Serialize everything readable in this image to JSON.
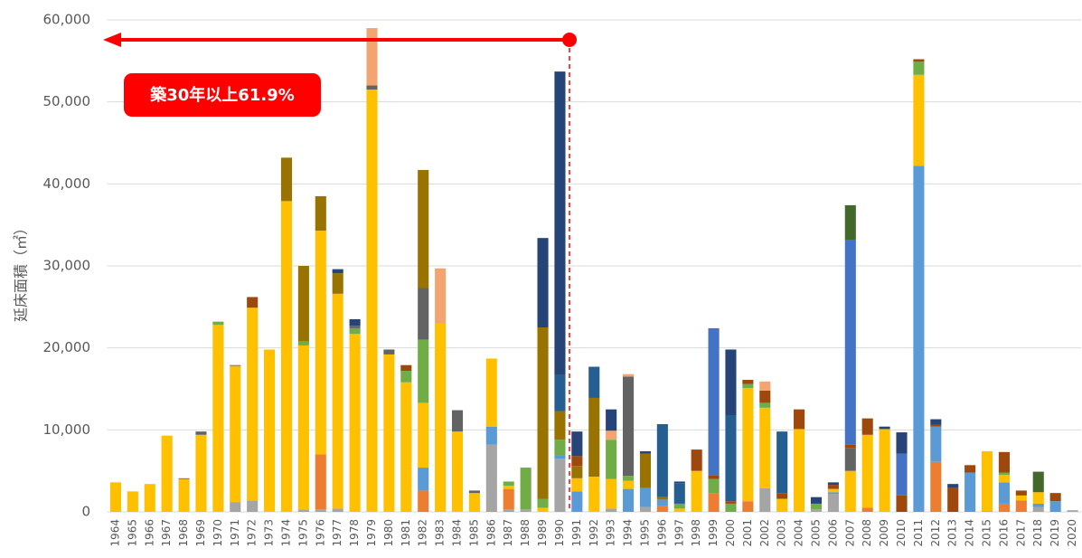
{
  "chart_data": {
    "type": "stacked_bar",
    "y_label": "延床面積（㎡）",
    "callout": "築30年以上61.9%",
    "categories": [
      "1964",
      "1965",
      "1966",
      "1967",
      "1968",
      "1969",
      "1970",
      "1971",
      "1972",
      "1973",
      "1974",
      "1975",
      "1976",
      "1977",
      "1978",
      "1979",
      "1980",
      "1981",
      "1982",
      "1983",
      "1984",
      "1985",
      "1986",
      "1987",
      "1988",
      "1989",
      "1990",
      "1991",
      "1992",
      "1993",
      "1994",
      "1995",
      "1996",
      "1997",
      "1998",
      "1999",
      "2000",
      "2001",
      "2002",
      "2003",
      "2004",
      "2005",
      "2006",
      "2007",
      "2008",
      "2009",
      "2010",
      "2011",
      "2012",
      "2013",
      "2014",
      "2015",
      "2016",
      "2017",
      "2018",
      "2019",
      "2020"
    ],
    "ylim": [
      0,
      60000
    ],
    "yticks": [
      0,
      {
        "value": 10000,
        "label": "10,000"
      },
      {
        "value": 20000,
        "label": "20,000"
      },
      {
        "value": 30000,
        "label": "30,000"
      },
      {
        "value": 40000,
        "label": "40,000"
      },
      {
        "value": 50000,
        "label": "50,000"
      },
      {
        "value": 60000,
        "label": "60,000"
      }
    ],
    "grid": true,
    "series": [
      {
        "color": "#a5a5a5",
        "values": [
          0,
          0,
          0,
          0,
          0,
          0,
          0,
          1200,
          1400,
          0,
          0,
          300,
          300,
          400,
          0,
          0,
          0,
          0,
          0,
          0,
          0,
          0,
          8200,
          300,
          300,
          0,
          6500,
          0,
          0,
          400,
          0,
          600,
          0,
          0,
          0,
          0,
          0,
          0,
          2900,
          0,
          0,
          300,
          2200,
          0,
          0,
          0,
          0,
          0,
          0,
          0,
          0,
          100,
          0,
          0,
          600,
          0,
          200
        ]
      },
      {
        "color": "#ed7d31",
        "values": [
          0,
          0,
          0,
          0,
          0,
          0,
          0,
          0,
          0,
          0,
          0,
          0,
          6700,
          0,
          0,
          0,
          0,
          0,
          2600,
          0,
          0,
          0,
          0,
          2500,
          0,
          0,
          0,
          0,
          0,
          0,
          0,
          0,
          700,
          0,
          0,
          2300,
          0,
          1300,
          0,
          0,
          0,
          0,
          0,
          0,
          500,
          0,
          0,
          0,
          6100,
          0,
          0,
          0,
          1000,
          1400,
          0,
          0,
          0
        ]
      },
      {
        "color": "#5b9bd5",
        "values": [
          0,
          0,
          0,
          0,
          0,
          0,
          0,
          0,
          0,
          0,
          0,
          0,
          0,
          0,
          0,
          0,
          0,
          0,
          2800,
          0,
          0,
          0,
          2200,
          0,
          0,
          0,
          400,
          2500,
          0,
          0,
          2800,
          2300,
          800,
          0,
          0,
          0,
          0,
          0,
          0,
          0,
          0,
          0,
          200,
          0,
          0,
          0,
          0,
          42200,
          4300,
          0,
          4800,
          0,
          2600,
          0,
          400,
          1300,
          0
        ]
      },
      {
        "color": "#ffc000",
        "values": [
          3600,
          2500,
          3400,
          9300,
          4000,
          9400,
          22800,
          16600,
          23500,
          19800,
          37900,
          20000,
          27300,
          26200,
          21700,
          51500,
          19200,
          15800,
          7900,
          23000,
          9800,
          2300,
          8300,
          400,
          0,
          500,
          0,
          1600,
          4300,
          3600,
          1000,
          0,
          0,
          400,
          5000,
          0,
          0,
          13800,
          9800,
          1600,
          10100,
          0,
          400,
          5000,
          8900,
          10100,
          0,
          11100,
          0,
          0,
          0,
          7300,
          900,
          600,
          1400,
          0,
          0
        ]
      },
      {
        "color": "#70ad47",
        "values": [
          0,
          0,
          0,
          0,
          0,
          0,
          400,
          0,
          0,
          0,
          0,
          500,
          0,
          0,
          700,
          0,
          0,
          1400,
          7700,
          0,
          0,
          0,
          0,
          500,
          5100,
          1100,
          1900,
          0,
          0,
          4800,
          600,
          0,
          0,
          600,
          0,
          1700,
          1000,
          500,
          600,
          0,
          0,
          700,
          0,
          0,
          0,
          0,
          0,
          1600,
          0,
          0,
          0,
          0,
          300,
          0,
          0,
          0,
          0
        ]
      },
      {
        "color": "#636363",
        "values": [
          0,
          0,
          0,
          0,
          100,
          400,
          0,
          100,
          0,
          0,
          0,
          0,
          0,
          0,
          300,
          500,
          600,
          0,
          6300,
          0,
          2600,
          300,
          0,
          0,
          0,
          0,
          0,
          0,
          0,
          0,
          12100,
          0,
          0,
          0,
          0,
          0,
          0,
          0,
          0,
          0,
          0,
          0,
          0,
          2800,
          0,
          0,
          0,
          0,
          0,
          0,
          0,
          0,
          0,
          0,
          0,
          0,
          0
        ]
      },
      {
        "color": "#997300",
        "values": [
          0,
          0,
          0,
          0,
          0,
          0,
          0,
          0,
          0,
          0,
          5300,
          9200,
          4200,
          2500,
          0,
          0,
          0,
          0,
          14400,
          0,
          0,
          0,
          0,
          0,
          0,
          20900,
          3500,
          1500,
          9600,
          0,
          0,
          4200,
          300,
          0,
          0,
          0,
          0,
          0,
          0,
          0,
          0,
          0,
          0,
          0,
          0,
          0,
          0,
          0,
          0,
          0,
          0,
          0,
          0,
          0,
          0,
          0,
          0
        ]
      },
      {
        "color": "#9e480e",
        "values": [
          0,
          0,
          0,
          0,
          0,
          0,
          0,
          0,
          1300,
          0,
          0,
          0,
          0,
          0,
          0,
          0,
          0,
          700,
          0,
          0,
          0,
          0,
          0,
          0,
          0,
          0,
          0,
          1200,
          0,
          0,
          0,
          0,
          0,
          0,
          2600,
          500,
          300,
          500,
          1500,
          700,
          2400,
          0,
          500,
          400,
          2000,
          0,
          2000,
          300,
          200,
          2900,
          900,
          0,
          2500,
          600,
          0,
          1000,
          0
        ]
      },
      {
        "color": "#f4a470",
        "values": [
          0,
          0,
          0,
          0,
          0,
          0,
          0,
          0,
          0,
          0,
          0,
          0,
          0,
          0,
          0,
          7000,
          0,
          0,
          0,
          6700,
          0,
          0,
          0,
          0,
          0,
          0,
          0,
          0,
          0,
          1100,
          300,
          0,
          0,
          0,
          0,
          0,
          0,
          0,
          1100,
          0,
          0,
          0,
          0,
          0,
          0,
          0,
          0,
          0,
          0,
          0,
          0,
          0,
          0,
          0,
          0,
          0,
          0
        ]
      },
      {
        "color": "#4472c4",
        "values": [
          0,
          0,
          0,
          0,
          0,
          0,
          0,
          0,
          0,
          0,
          0,
          0,
          0,
          0,
          0,
          0,
          0,
          0,
          0,
          0,
          0,
          0,
          0,
          0,
          0,
          0,
          0,
          0,
          0,
          0,
          0,
          0,
          0,
          0,
          0,
          17900,
          0,
          0,
          0,
          0,
          0,
          0,
          0,
          25000,
          0,
          0,
          5100,
          0,
          0,
          0,
          0,
          0,
          0,
          0,
          0,
          0,
          0
        ]
      },
      {
        "color": "#255e91",
        "values": [
          0,
          0,
          0,
          0,
          0,
          0,
          0,
          0,
          0,
          0,
          0,
          0,
          0,
          0,
          0,
          0,
          0,
          0,
          0,
          0,
          0,
          0,
          0,
          0,
          0,
          0,
          4400,
          0,
          3800,
          0,
          0,
          0,
          8900,
          2500,
          0,
          0,
          10500,
          0,
          0,
          7500,
          0,
          0,
          0,
          0,
          0,
          0,
          0,
          0,
          0,
          0,
          0,
          0,
          0,
          0,
          0,
          0,
          0
        ]
      },
      {
        "color": "#264478",
        "values": [
          0,
          0,
          0,
          0,
          0,
          0,
          0,
          0,
          0,
          0,
          0,
          0,
          0,
          500,
          800,
          0,
          0,
          0,
          0,
          0,
          0,
          0,
          0,
          0,
          0,
          10900,
          37000,
          3000,
          0,
          2600,
          0,
          300,
          0,
          200,
          0,
          0,
          8000,
          0,
          0,
          0,
          0,
          800,
          300,
          0,
          0,
          300,
          2600,
          0,
          700,
          500,
          0,
          0,
          0,
          0,
          0,
          0,
          0
        ]
      },
      {
        "color": "#43682b",
        "values": [
          0,
          0,
          0,
          0,
          0,
          0,
          0,
          0,
          0,
          0,
          0,
          0,
          0,
          0,
          0,
          0,
          0,
          0,
          0,
          0,
          0,
          0,
          0,
          0,
          0,
          0,
          0,
          0,
          0,
          0,
          0,
          0,
          0,
          0,
          0,
          0,
          0,
          0,
          0,
          0,
          0,
          0,
          0,
          4200,
          0,
          0,
          0,
          0,
          0,
          0,
          0,
          0,
          0,
          0,
          2500,
          0,
          0
        ]
      }
    ]
  }
}
